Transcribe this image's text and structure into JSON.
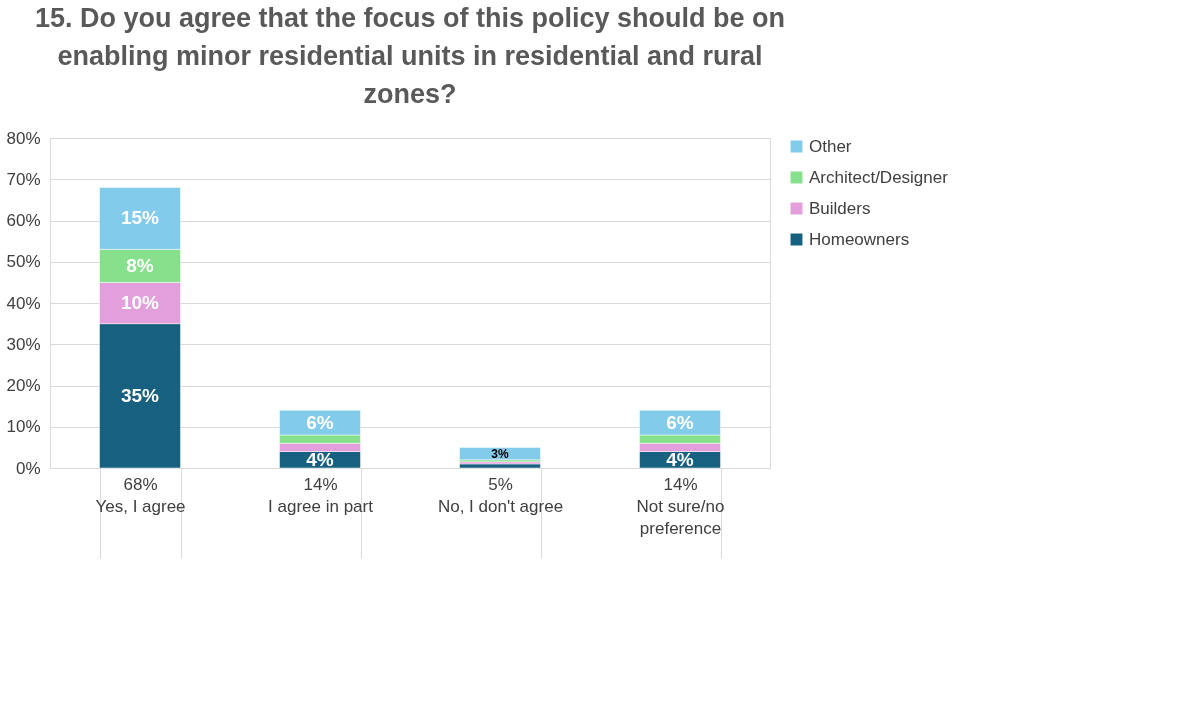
{
  "chart_data": {
    "type": "bar",
    "stacked": true,
    "title": "15. Do you agree that the focus of this policy should be on enabling minor residential units in residential and rural zones?",
    "categories": [
      "Yes, I agree",
      "I agree in part",
      "No, I don't agree",
      "Not sure/no preference"
    ],
    "totals": [
      "68%",
      "14%",
      "5%",
      "14%"
    ],
    "series": [
      {
        "name": "Homeowners",
        "color": "#17607f",
        "values": [
          35,
          4,
          1,
          4
        ],
        "value_labels": [
          "35%",
          "4%",
          null,
          "4%"
        ]
      },
      {
        "name": "Builders",
        "color": "#e39fdb",
        "values": [
          10,
          2,
          0.5,
          2
        ],
        "value_labels": [
          "10%",
          null,
          null,
          null
        ]
      },
      {
        "name": "Architect/Designer",
        "color": "#86e08c",
        "values": [
          8,
          2,
          0.5,
          2
        ],
        "value_labels": [
          "8%",
          null,
          null,
          null
        ]
      },
      {
        "name": "Other",
        "color": "#83cbeb",
        "values": [
          15,
          6,
          3,
          6
        ],
        "value_labels": [
          "15%",
          "6%",
          "3%",
          "6%"
        ]
      }
    ],
    "ylim": [
      0,
      80
    ],
    "yticks": [
      {
        "value": 0,
        "label": "0%"
      },
      {
        "value": 10,
        "label": "10%"
      },
      {
        "value": 20,
        "label": "20%"
      },
      {
        "value": 30,
        "label": "30%"
      },
      {
        "value": 40,
        "label": "40%"
      },
      {
        "value": 50,
        "label": "50%"
      },
      {
        "value": 60,
        "label": "60%"
      },
      {
        "value": 70,
        "label": "70%"
      },
      {
        "value": 80,
        "label": "80%"
      }
    ],
    "grid": "y",
    "legend": "right"
  }
}
